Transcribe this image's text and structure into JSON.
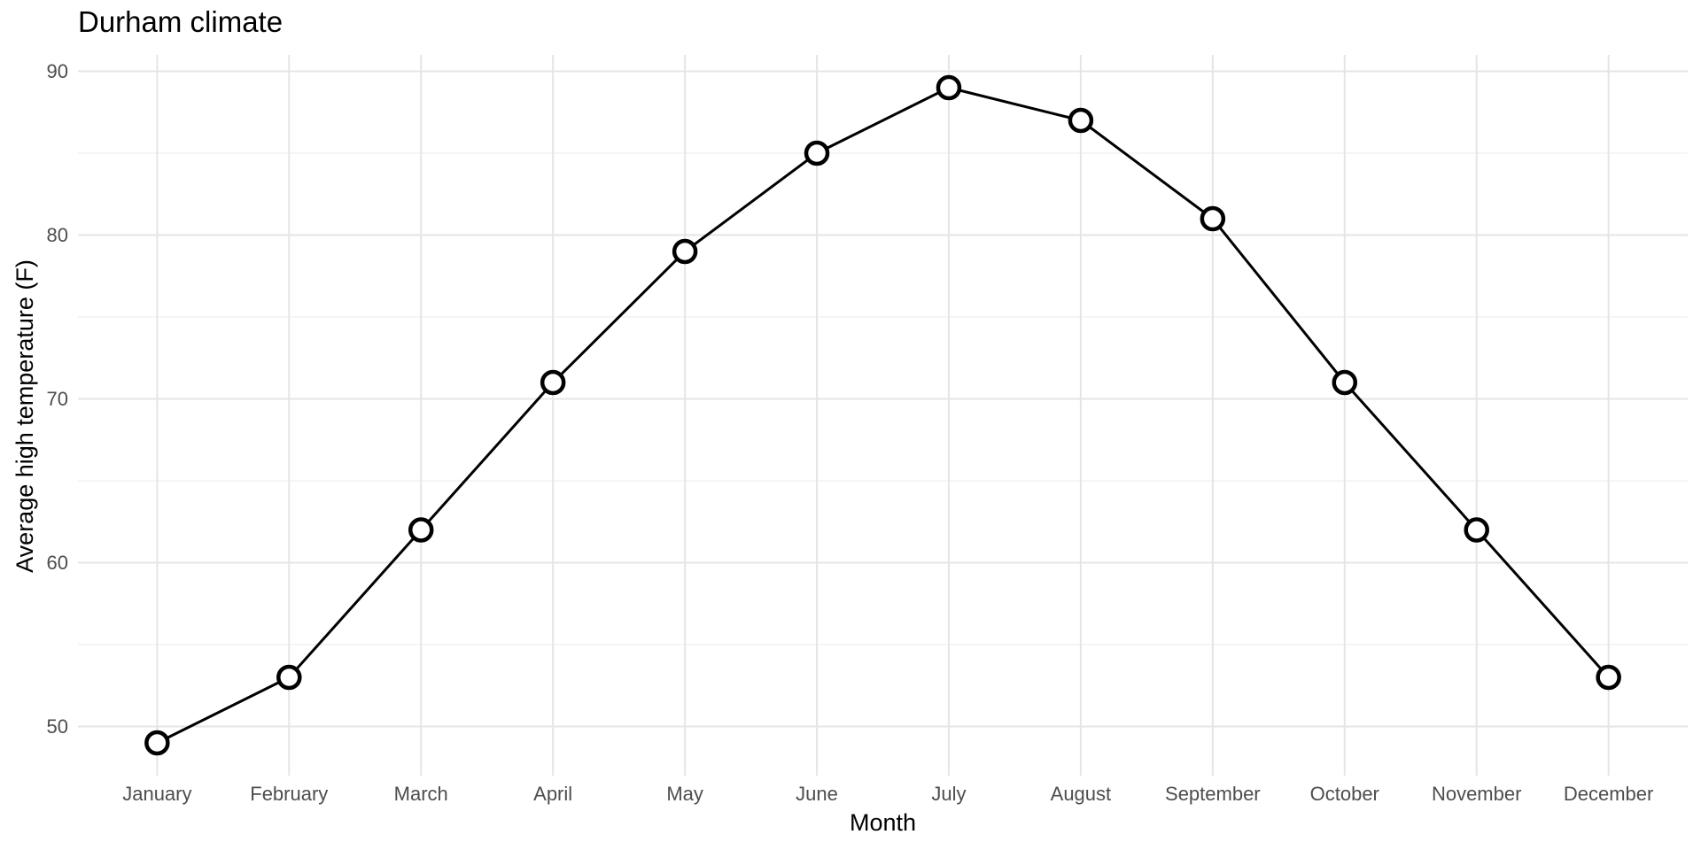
{
  "chart_data": {
    "type": "line",
    "title": "Durham climate",
    "xlabel": "Month",
    "ylabel": "Average high temperature (F)",
    "categories": [
      "January",
      "February",
      "March",
      "April",
      "May",
      "June",
      "July",
      "August",
      "September",
      "October",
      "November",
      "December"
    ],
    "values": [
      49,
      53,
      62,
      71,
      79,
      85,
      89,
      87,
      81,
      71,
      62,
      53
    ],
    "yticks": [
      50,
      60,
      70,
      80,
      90
    ],
    "yticks_minor": [
      55,
      65,
      75,
      85
    ],
    "ylim": [
      47,
      91
    ],
    "grid": "major-x major-y minor-y",
    "legend_position": "none",
    "colors": {
      "background": "#FFFFFF",
      "line": "#000000",
      "point_fill": "#FFFFFF",
      "point_stroke": "#000000",
      "grid_major": "#E5E5E5",
      "grid_minor": "#EFEFEF",
      "tick_text": "#4D4D4D",
      "title_text": "#000000"
    }
  }
}
